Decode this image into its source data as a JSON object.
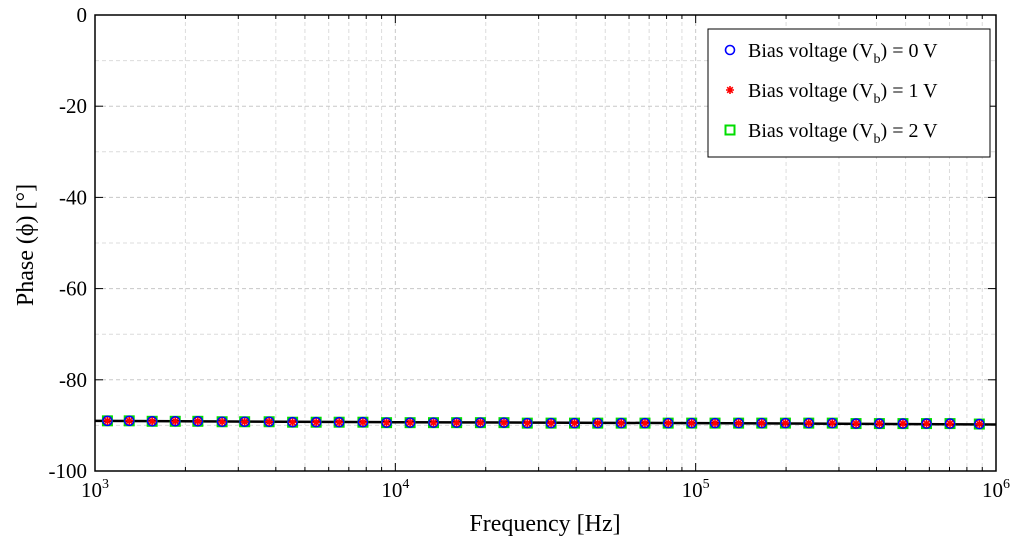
{
  "chart_data": {
    "type": "scatter",
    "xscale": "log",
    "xlim": [
      1000,
      1000000
    ],
    "ylim": [
      -100,
      0
    ],
    "grid": true,
    "legend_position": "top-right",
    "xlabel": "Frequency [Hz]",
    "ylabel": "Phase (ϕ) [°]",
    "x_ticks": [
      {
        "value": 1000,
        "base": "10",
        "exp": "3"
      },
      {
        "value": 10000,
        "base": "10",
        "exp": "4"
      },
      {
        "value": 100000,
        "base": "10",
        "exp": "5"
      },
      {
        "value": 1000000,
        "base": "10",
        "exp": "6"
      }
    ],
    "y_ticks": [
      {
        "value": 0,
        "label": "0"
      },
      {
        "value": -20,
        "label": "-20"
      },
      {
        "value": -40,
        "label": "-40"
      },
      {
        "value": -60,
        "label": "-60"
      },
      {
        "value": -80,
        "label": "-80"
      },
      {
        "value": -100,
        "label": "-100"
      }
    ],
    "x": [
      1100,
      1300,
      1550,
      1850,
      2200,
      2650,
      3150,
      3800,
      4550,
      5450,
      6500,
      7800,
      9350,
      11200,
      13400,
      16000,
      19200,
      23000,
      27500,
      33000,
      39500,
      47200,
      56500,
      67800,
      81000,
      97000,
      116000,
      139000,
      166000,
      199000,
      238000,
      285000,
      342000,
      409000,
      490000,
      587000,
      703000,
      880000
    ],
    "series": [
      {
        "legend_main": "Bias voltage (V",
        "legend_sub": "b",
        "legend_tail": ") = 0 V",
        "marker": "circle",
        "color": "#0000ff",
        "values": [
          -89.0,
          -89.0,
          -89.1,
          -89.1,
          -89.1,
          -89.2,
          -89.2,
          -89.2,
          -89.3,
          -89.3,
          -89.3,
          -89.3,
          -89.4,
          -89.4,
          -89.4,
          -89.4,
          -89.4,
          -89.4,
          -89.5,
          -89.5,
          -89.5,
          -89.5,
          -89.5,
          -89.5,
          -89.5,
          -89.5,
          -89.5,
          -89.5,
          -89.5,
          -89.5,
          -89.5,
          -89.5,
          -89.6,
          -89.6,
          -89.6,
          -89.6,
          -89.6,
          -89.7
        ]
      },
      {
        "legend_main": "Bias voltage (V",
        "legend_sub": "b",
        "legend_tail": ") = 1 V",
        "marker": "star",
        "color": "#ff0000",
        "values": [
          -89.0,
          -89.0,
          -89.1,
          -89.1,
          -89.1,
          -89.2,
          -89.2,
          -89.2,
          -89.3,
          -89.3,
          -89.3,
          -89.3,
          -89.4,
          -89.4,
          -89.4,
          -89.4,
          -89.4,
          -89.4,
          -89.5,
          -89.5,
          -89.5,
          -89.5,
          -89.5,
          -89.5,
          -89.5,
          -89.5,
          -89.5,
          -89.5,
          -89.5,
          -89.5,
          -89.5,
          -89.5,
          -89.6,
          -89.6,
          -89.6,
          -89.6,
          -89.6,
          -89.7
        ]
      },
      {
        "legend_main": "Bias voltage (V",
        "legend_sub": "b",
        "legend_tail": ") = 2 V",
        "marker": "square",
        "color": "#00dd00",
        "values": [
          -89.0,
          -89.0,
          -89.1,
          -89.1,
          -89.1,
          -89.2,
          -89.2,
          -89.2,
          -89.3,
          -89.3,
          -89.3,
          -89.3,
          -89.4,
          -89.4,
          -89.4,
          -89.4,
          -89.4,
          -89.4,
          -89.5,
          -89.5,
          -89.5,
          -89.5,
          -89.5,
          -89.5,
          -89.5,
          -89.5,
          -89.5,
          -89.5,
          -89.5,
          -89.5,
          -89.5,
          -89.5,
          -89.6,
          -89.6,
          -89.6,
          -89.6,
          -89.6,
          -89.7
        ]
      }
    ],
    "fit_line": {
      "color": "#000000",
      "x": [
        1000,
        10000,
        100000,
        1000000
      ],
      "y": [
        -89.0,
        -89.3,
        -89.5,
        -89.8
      ]
    }
  }
}
